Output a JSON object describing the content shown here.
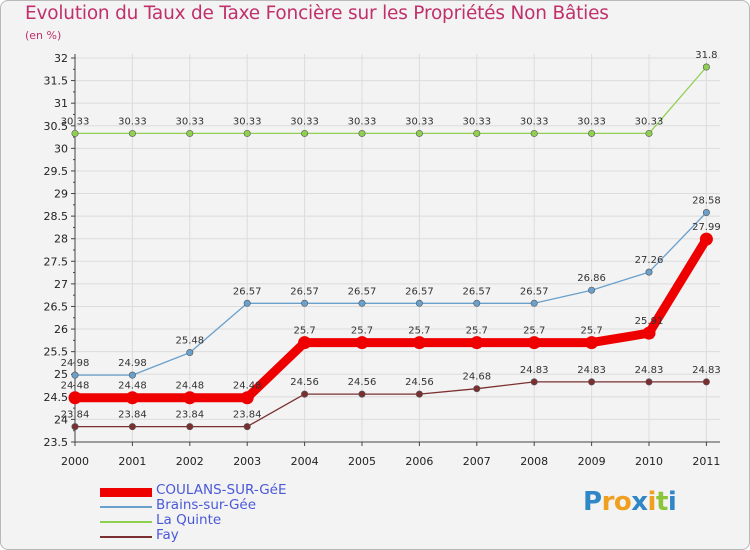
{
  "title": "Evolution du Taux de Taxe Foncière sur les Propriétés Non Bâties",
  "subtitle": "(en %)",
  "logo": {
    "letters": [
      "P",
      "r",
      "o",
      "x",
      "i",
      "t",
      "i"
    ],
    "colors": [
      "#2f87c8",
      "#f0a020",
      "#f0a020",
      "#2f87c8",
      "#f0a020",
      "#8cc43a",
      "#2f87c8"
    ]
  },
  "chart_data": {
    "type": "line",
    "title": "Evolution du Taux de Taxe Foncière sur les Propriétés Non Bâties",
    "ylabel": "(en %)",
    "xlabel": "",
    "ylim": [
      23.5,
      32
    ],
    "yticks": [
      "23.5",
      "24",
      "24.5",
      "25",
      "25.5",
      "26",
      "26.5",
      "27",
      "27.5",
      "28",
      "28.5",
      "29",
      "29.5",
      "30",
      "30.5",
      "31",
      "31.5",
      "32"
    ],
    "categories": [
      "2000",
      "2001",
      "2002",
      "2003",
      "2004",
      "2005",
      "2006",
      "2007",
      "2008",
      "2009",
      "2010",
      "2011"
    ],
    "series": [
      {
        "name": "COULANS-SUR-GéE",
        "color": "#ee0000",
        "width": 9,
        "values": [
          24.48,
          24.48,
          24.48,
          24.48,
          25.7,
          25.7,
          25.7,
          25.7,
          25.7,
          25.7,
          25.91,
          27.99
        ],
        "labels": [
          "24.48",
          "24.48",
          "24.48",
          "24.48",
          "25.7",
          "25.7",
          "25.7",
          "25.7",
          "25.7",
          "25.7",
          "25.91",
          "27.99"
        ]
      },
      {
        "name": "Brains-sur-Gée",
        "color": "#6aa0cc",
        "width": 1.3,
        "values": [
          24.98,
          24.98,
          25.48,
          26.57,
          26.57,
          26.57,
          26.57,
          26.57,
          26.57,
          26.86,
          27.26,
          28.58
        ],
        "labels": [
          "24.98",
          "24.98",
          "25.48",
          "26.57",
          "26.57",
          "26.57",
          "26.57",
          "26.57",
          "26.57",
          "26.86",
          "27.26",
          "28.58"
        ]
      },
      {
        "name": "La Quinte",
        "color": "#90d050",
        "width": 1.3,
        "values": [
          30.33,
          30.33,
          30.33,
          30.33,
          30.33,
          30.33,
          30.33,
          30.33,
          30.33,
          30.33,
          30.33,
          31.8
        ],
        "labels": [
          "30.33",
          "30.33",
          "30.33",
          "30.33",
          "30.33",
          "30.33",
          "30.33",
          "30.33",
          "30.33",
          "30.33",
          "30.33",
          "31.8"
        ]
      },
      {
        "name": "Fay",
        "color": "#7a3030",
        "width": 1.3,
        "values": [
          23.84,
          23.84,
          23.84,
          23.84,
          24.56,
          24.56,
          24.56,
          24.68,
          24.83,
          24.83,
          24.83,
          24.83
        ],
        "labels": [
          "23.84",
          "23.84",
          "23.84",
          "23.84",
          "24.56",
          "24.56",
          "24.56",
          "24.68",
          "24.83",
          "24.83",
          "24.83",
          "24.83"
        ]
      }
    ]
  }
}
